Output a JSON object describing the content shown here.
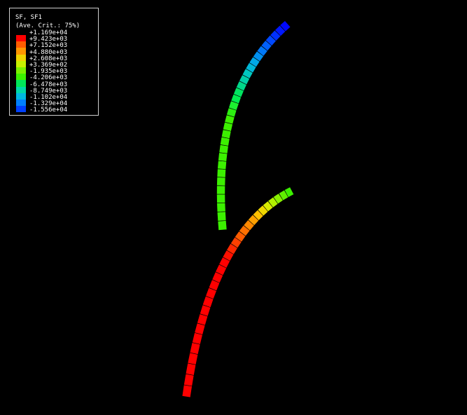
{
  "legend": {
    "title": "SF, SF1",
    "subtitle": "(Ave. Crit.: 75%)",
    "labels": [
      "+1.169e+04",
      "+9.423e+03",
      "+7.152e+03",
      "+4.880e+03",
      "+2.608e+03",
      "+3.369e+02",
      "-1.935e+03",
      "-4.206e+03",
      "-6.478e+03",
      "-8.749e+03",
      "-1.102e+04",
      "-1.329e+04",
      "-1.556e+04"
    ],
    "colors": [
      "#ff0000",
      "#ff5c00",
      "#ff9600",
      "#f0d400",
      "#c8f000",
      "#7cf000",
      "#3cf000",
      "#00e658",
      "#00d8a8",
      "#00b8e0",
      "#0080ff",
      "#0040ff",
      "#0000ff"
    ]
  },
  "upper_beam": {
    "colors_bottom_to_top": [
      "#3cf000",
      "#3cf000",
      "#3cf000",
      "#3cf000",
      "#3cf000",
      "#3cf000",
      "#3cf000",
      "#3cf000",
      "#3cf000",
      "#3cf000",
      "#3cf000",
      "#3cf000",
      "#3cf000",
      "#3cf000",
      "#2cf010",
      "#1cf030",
      "#00ec50",
      "#00e460",
      "#00d88a",
      "#00d0a8",
      "#00c8c0",
      "#00b8d8",
      "#00a8e8",
      "#0090f0",
      "#0078f8",
      "#0060ff",
      "#0048ff",
      "#0030ff",
      "#0018ff",
      "#0008ff"
    ]
  },
  "lower_beam": {
    "colors_bottom_to_top": [
      "#ff0000",
      "#ff0000",
      "#ff0000",
      "#ff0000",
      "#ff0000",
      "#ff0000",
      "#ff0000",
      "#ff0000",
      "#ff0000",
      "#ff0000",
      "#ff0000",
      "#ff0000",
      "#ff0000",
      "#ff0000",
      "#ff0000",
      "#ff1000",
      "#ff2800",
      "#ff4000",
      "#ff5c00",
      "#ff7000",
      "#ff8800",
      "#ffa000",
      "#ffc000",
      "#f0d800",
      "#d8ec00",
      "#b0f000",
      "#88f000",
      "#60f000",
      "#3cf000"
    ]
  }
}
